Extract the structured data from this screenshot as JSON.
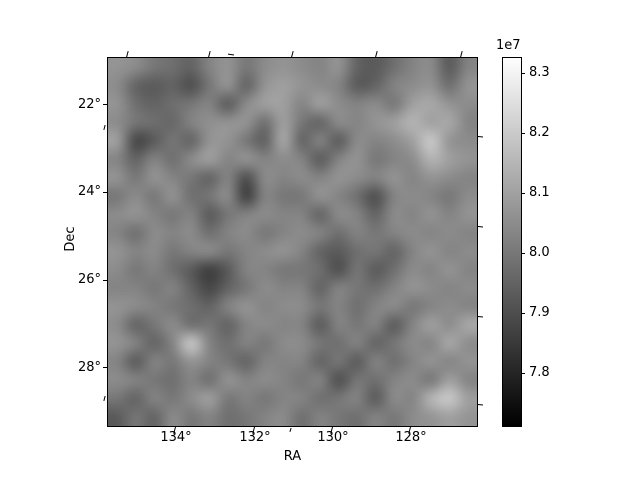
{
  "figure": {
    "background": "#ffffff",
    "xlabel": "RA",
    "ylabel": "Dec",
    "x_ticks": [
      "134°",
      "132°",
      "130°",
      "128°"
    ],
    "y_ticks": [
      "22°",
      "24°",
      "26°",
      "28°"
    ],
    "colorbar": {
      "offset_label": "1e7",
      "ticks": [
        "8.3",
        "8.2",
        "8.1",
        "8.0",
        "7.9",
        "7.8"
      ],
      "top_color": "#fefefe",
      "bottom_color": "#000000"
    }
  },
  "chart_data": {
    "type": "heatmap",
    "title": "",
    "xlabel": "RA",
    "ylabel": "Dec",
    "x_tick_labels": [
      "134°",
      "132°",
      "130°",
      "128°"
    ],
    "y_tick_labels": [
      "22°",
      "24°",
      "26°",
      "28°"
    ],
    "x_tick_values_deg": [
      134,
      132,
      130,
      128
    ],
    "y_tick_values_deg": [
      22,
      24,
      26,
      28
    ],
    "x_range_deg": [
      135.7,
      126.3
    ],
    "y_range_deg": [
      20.9,
      29.35
    ],
    "x_direction": "RA increases to the left",
    "grid": false,
    "cmap": "gray",
    "value_scale": 10000000,
    "colorbar_tick_values_1e7": [
      8.3,
      8.2,
      8.1,
      8.0,
      7.9,
      7.8
    ],
    "colorbar_offset_text": "1e7",
    "clim_1e7": [
      7.71,
      8.33
    ],
    "values_unit": "1e7",
    "values_1e7": [
      [
        8.07,
        8.05,
        8.0,
        7.98,
        7.95,
        8.03,
        8.07,
        8.0,
        8.05,
        8.07,
        8.05,
        8.03,
        8.07,
        7.95,
        7.93,
        7.98,
        8.03,
        8.05,
        7.93,
        8.03
      ],
      [
        8.05,
        7.95,
        7.93,
        7.95,
        7.9,
        8.0,
        8.07,
        7.95,
        8.07,
        8.1,
        8.07,
        8.05,
        8.03,
        7.93,
        7.95,
        8.03,
        8.05,
        8.07,
        7.98,
        8.07
      ],
      [
        8.07,
        7.98,
        7.95,
        7.98,
        8.0,
        8.03,
        7.93,
        8.05,
        8.1,
        8.1,
        8.03,
        8.1,
        8.05,
        8.03,
        8.05,
        8.0,
        8.1,
        8.12,
        8.07,
        8.05
      ],
      [
        8.05,
        8.0,
        7.98,
        7.96,
        8.03,
        8.06,
        8.07,
        8.07,
        7.98,
        8.1,
        8.0,
        7.95,
        8.05,
        8.03,
        8.07,
        8.1,
        8.15,
        8.1,
        8.12,
        8.03
      ],
      [
        8.1,
        7.88,
        7.93,
        8.0,
        7.95,
        8.07,
        8.07,
        8.0,
        7.94,
        8.12,
        7.95,
        8.03,
        7.93,
        8.05,
        8.03,
        8.05,
        8.1,
        8.2,
        8.07,
        8.05
      ],
      [
        8.03,
        7.95,
        8.03,
        7.98,
        8.05,
        8.1,
        8.03,
        8.07,
        8.03,
        8.05,
        8.03,
        7.93,
        8.03,
        8.07,
        8.0,
        8.03,
        8.05,
        8.15,
        8.1,
        8.07
      ],
      [
        8.07,
        8.0,
        8.07,
        8.03,
        8.0,
        7.95,
        8.03,
        7.9,
        8.05,
        8.03,
        8.05,
        8.03,
        8.07,
        8.05,
        8.03,
        8.07,
        8.03,
        8.07,
        8.05,
        8.03
      ],
      [
        8.0,
        8.05,
        8.0,
        8.07,
        7.98,
        8.0,
        8.05,
        7.86,
        8.03,
        8.0,
        8.0,
        8.07,
        8.03,
        7.98,
        7.9,
        8.03,
        8.05,
        8.03,
        8.0,
        8.05
      ],
      [
        8.05,
        8.07,
        8.03,
        8.0,
        8.03,
        7.93,
        8.0,
        8.03,
        8.05,
        8.03,
        8.03,
        7.95,
        8.05,
        8.03,
        7.95,
        8.05,
        8.03,
        8.07,
        8.03,
        8.07
      ],
      [
        8.03,
        7.98,
        8.05,
        8.03,
        8.05,
        7.98,
        8.03,
        8.05,
        8.0,
        8.03,
        8.05,
        8.03,
        7.98,
        8.03,
        8.0,
        8.03,
        8.05,
        8.03,
        8.05,
        8.03
      ],
      [
        8.07,
        8.03,
        8.05,
        8.0,
        8.03,
        8.05,
        8.0,
        8.03,
        8.05,
        8.07,
        8.03,
        7.95,
        7.93,
        7.98,
        8.0,
        7.95,
        8.03,
        8.07,
        8.03,
        8.05
      ],
      [
        8.05,
        8.0,
        8.03,
        7.98,
        7.93,
        7.86,
        7.93,
        8.03,
        8.03,
        8.0,
        8.0,
        7.98,
        7.9,
        8.0,
        7.93,
        7.98,
        8.05,
        8.03,
        8.07,
        8.03
      ],
      [
        8.03,
        8.03,
        8.0,
        8.03,
        7.95,
        7.88,
        7.95,
        8.0,
        8.05,
        8.03,
        8.03,
        7.95,
        8.03,
        8.0,
        7.98,
        8.03,
        8.07,
        8.05,
        8.03,
        8.05
      ],
      [
        8.07,
        8.05,
        8.03,
        8.0,
        7.98,
        7.95,
        8.03,
        8.07,
        8.03,
        8.05,
        8.05,
        8.0,
        8.03,
        7.98,
        8.03,
        8.05,
        8.0,
        8.03,
        8.05,
        8.03
      ],
      [
        8.05,
        7.95,
        8.0,
        8.05,
        7.98,
        8.0,
        7.95,
        8.03,
        8.05,
        8.03,
        8.03,
        7.93,
        8.03,
        8.0,
        8.03,
        7.93,
        8.03,
        8.1,
        8.05,
        8.12
      ],
      [
        8.07,
        8.03,
        7.95,
        8.03,
        8.2,
        8.03,
        7.98,
        8.03,
        8.0,
        8.05,
        8.05,
        8.0,
        7.98,
        8.03,
        7.95,
        8.0,
        8.05,
        8.03,
        8.12,
        8.05
      ],
      [
        8.03,
        7.93,
        8.03,
        8.0,
        8.07,
        8.03,
        8.0,
        7.95,
        8.03,
        8.03,
        8.03,
        7.95,
        8.0,
        7.93,
        8.03,
        7.98,
        8.03,
        8.07,
        8.03,
        8.07
      ],
      [
        8.05,
        8.03,
        8.0,
        7.98,
        8.03,
        7.98,
        8.07,
        8.03,
        8.05,
        8.03,
        8.0,
        8.03,
        7.9,
        8.0,
        7.98,
        8.03,
        8.05,
        8.0,
        8.1,
        8.03
      ],
      [
        8.0,
        7.95,
        8.03,
        8.0,
        8.05,
        8.1,
        8.0,
        8.03,
        8.0,
        8.03,
        8.03,
        7.98,
        8.0,
        8.03,
        7.93,
        8.05,
        8.03,
        8.15,
        8.2,
        8.1
      ],
      [
        7.93,
        8.0,
        7.95,
        8.05,
        8.0,
        8.03,
        7.98,
        8.0,
        8.03,
        8.05,
        7.98,
        8.03,
        8.0,
        7.98,
        8.03,
        8.0,
        8.05,
        8.07,
        8.1,
        8.07
      ]
    ]
  }
}
